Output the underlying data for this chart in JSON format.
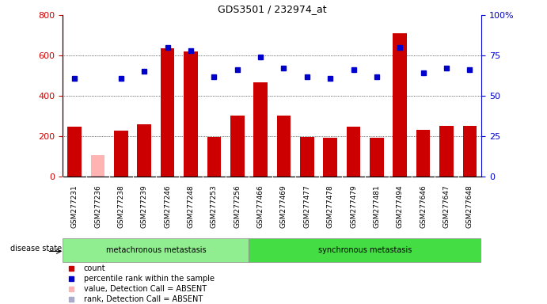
{
  "title": "GDS3501 / 232974_at",
  "samples": [
    "GSM277231",
    "GSM277236",
    "GSM277238",
    "GSM277239",
    "GSM277246",
    "GSM277248",
    "GSM277253",
    "GSM277256",
    "GSM277466",
    "GSM277469",
    "GSM277477",
    "GSM277478",
    "GSM277479",
    "GSM277481",
    "GSM277494",
    "GSM277646",
    "GSM277647",
    "GSM277648"
  ],
  "counts": [
    245,
    105,
    225,
    260,
    635,
    620,
    195,
    300,
    465,
    300,
    195,
    190,
    245,
    190,
    710,
    230,
    250,
    250
  ],
  "percentile_ranks": [
    61,
    null,
    61,
    65,
    80,
    78,
    62,
    66,
    74,
    67,
    62,
    61,
    66,
    62,
    80,
    64,
    67,
    66
  ],
  "absent_mask": [
    false,
    true,
    false,
    false,
    false,
    false,
    false,
    false,
    false,
    false,
    false,
    false,
    false,
    false,
    false,
    false,
    false,
    false
  ],
  "absent_rank_mask": [
    false,
    false,
    false,
    false,
    false,
    false,
    false,
    false,
    false,
    false,
    false,
    false,
    false,
    false,
    false,
    false,
    false,
    false
  ],
  "group1_label": "metachronous metastasis",
  "group2_label": "synchronous metastasis",
  "group1_count": 8,
  "group2_count": 10,
  "bar_color_present": "#cc0000",
  "bar_color_absent": "#ffb3b3",
  "dot_color_present": "#0000cc",
  "dot_color_absent": "#b3b3cc",
  "ylim_left": [
    0,
    800
  ],
  "ylim_right": [
    0,
    100
  ],
  "yticks_left": [
    0,
    200,
    400,
    600,
    800
  ],
  "yticks_right": [
    0,
    25,
    50,
    75,
    100
  ],
  "group_bg_color": "#90ee90",
  "label_bg_color": "#d3d3d3",
  "disease_state_label": "disease state",
  "legend_items": [
    {
      "label": "count",
      "color": "#cc0000",
      "marker": "s"
    },
    {
      "label": "percentile rank within the sample",
      "color": "#0000cc",
      "marker": "s"
    },
    {
      "label": "value, Detection Call = ABSENT",
      "color": "#ffb3b3",
      "marker": "s"
    },
    {
      "label": "rank, Detection Call = ABSENT",
      "color": "#aaaacc",
      "marker": "s"
    }
  ]
}
